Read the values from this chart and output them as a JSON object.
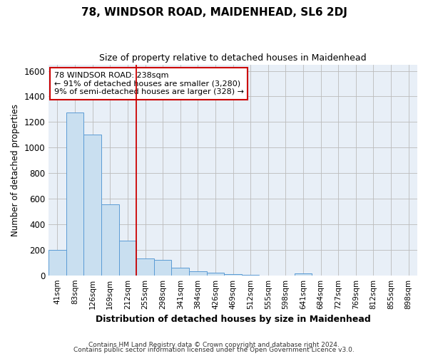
{
  "title1": "78, WINDSOR ROAD, MAIDENHEAD, SL6 2DJ",
  "title2": "Size of property relative to detached houses in Maidenhead",
  "xlabel": "Distribution of detached houses by size in Maidenhead",
  "ylabel": "Number of detached properties",
  "footer1": "Contains HM Land Registry data © Crown copyright and database right 2024.",
  "footer2": "Contains public sector information licensed under the Open Government Licence v3.0.",
  "categories": [
    "41sqm",
    "83sqm",
    "126sqm",
    "169sqm",
    "212sqm",
    "255sqm",
    "298sqm",
    "341sqm",
    "384sqm",
    "426sqm",
    "469sqm",
    "512sqm",
    "555sqm",
    "598sqm",
    "641sqm",
    "684sqm",
    "727sqm",
    "769sqm",
    "812sqm",
    "855sqm",
    "898sqm"
  ],
  "values": [
    200,
    1275,
    1100,
    555,
    270,
    130,
    120,
    60,
    30,
    20,
    10,
    5,
    0,
    0,
    15,
    0,
    0,
    0,
    0,
    0,
    0
  ],
  "bar_color": "#c9dff0",
  "bar_edge_color": "#5b9bd5",
  "bar_edge_width": 0.7,
  "red_line_x": 4.5,
  "red_line_color": "#cc0000",
  "annotation_line1": "78 WINDSOR ROAD: 238sqm",
  "annotation_line2": "← 91% of detached houses are smaller (3,280)",
  "annotation_line3": "9% of semi-detached houses are larger (328) →",
  "annotation_box_color": "white",
  "annotation_box_edge_color": "#cc0000",
  "ylim": [
    0,
    1650
  ],
  "yticks": [
    0,
    200,
    400,
    600,
    800,
    1000,
    1200,
    1400,
    1600
  ],
  "grid_color": "#bbbbbb",
  "background_color": "white",
  "plot_bg_color": "#e8eff7"
}
